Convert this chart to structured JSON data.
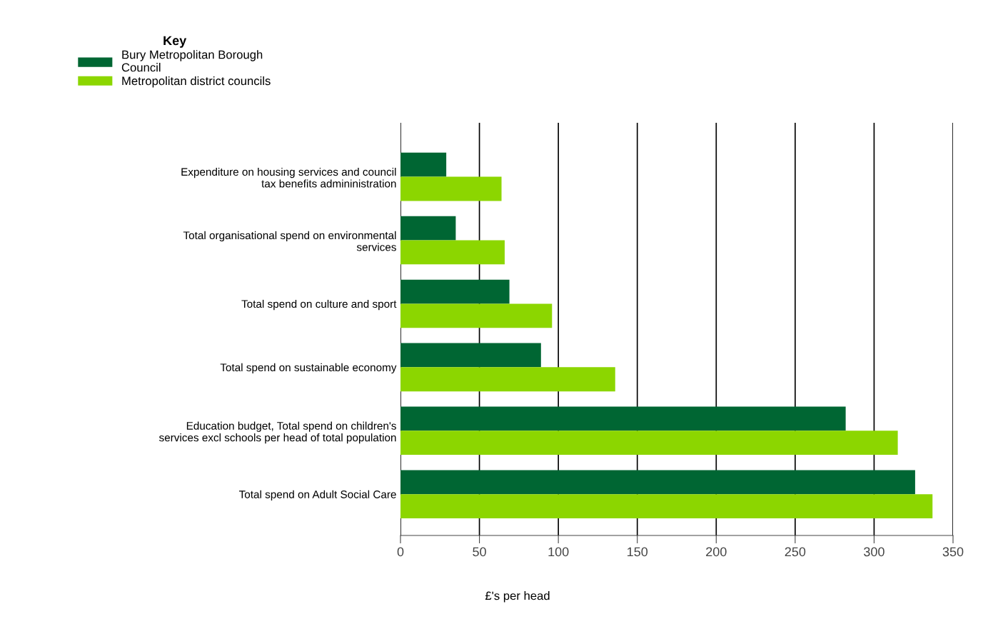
{
  "chart_data": {
    "type": "bar",
    "orientation": "horizontal",
    "xlabel": "£'s per head",
    "legend_title": "Key",
    "categories": [
      "Expenditure on housing services and council\ntax benefits admininistration",
      "Total organisational spend on environmental\nservices",
      "Total spend on culture and sport",
      "Total spend on sustainable economy",
      "Education budget, Total spend on children's\nservices excl schools per head of total population",
      "Total spend on Adult Social Care"
    ],
    "series": [
      {
        "name": "Bury Metropolitan Borough\nCouncil",
        "color": "#006633",
        "values": [
          29,
          35,
          69,
          89,
          282,
          326
        ]
      },
      {
        "name": "Metropolitan district councils",
        "color": "#8cd600",
        "values": [
          64,
          66,
          96,
          136,
          315,
          337
        ]
      }
    ],
    "xlim": [
      0,
      350
    ],
    "xticks": [
      0,
      50,
      100,
      150,
      200,
      250,
      300,
      350
    ],
    "grid": "x",
    "legend": "top left"
  }
}
